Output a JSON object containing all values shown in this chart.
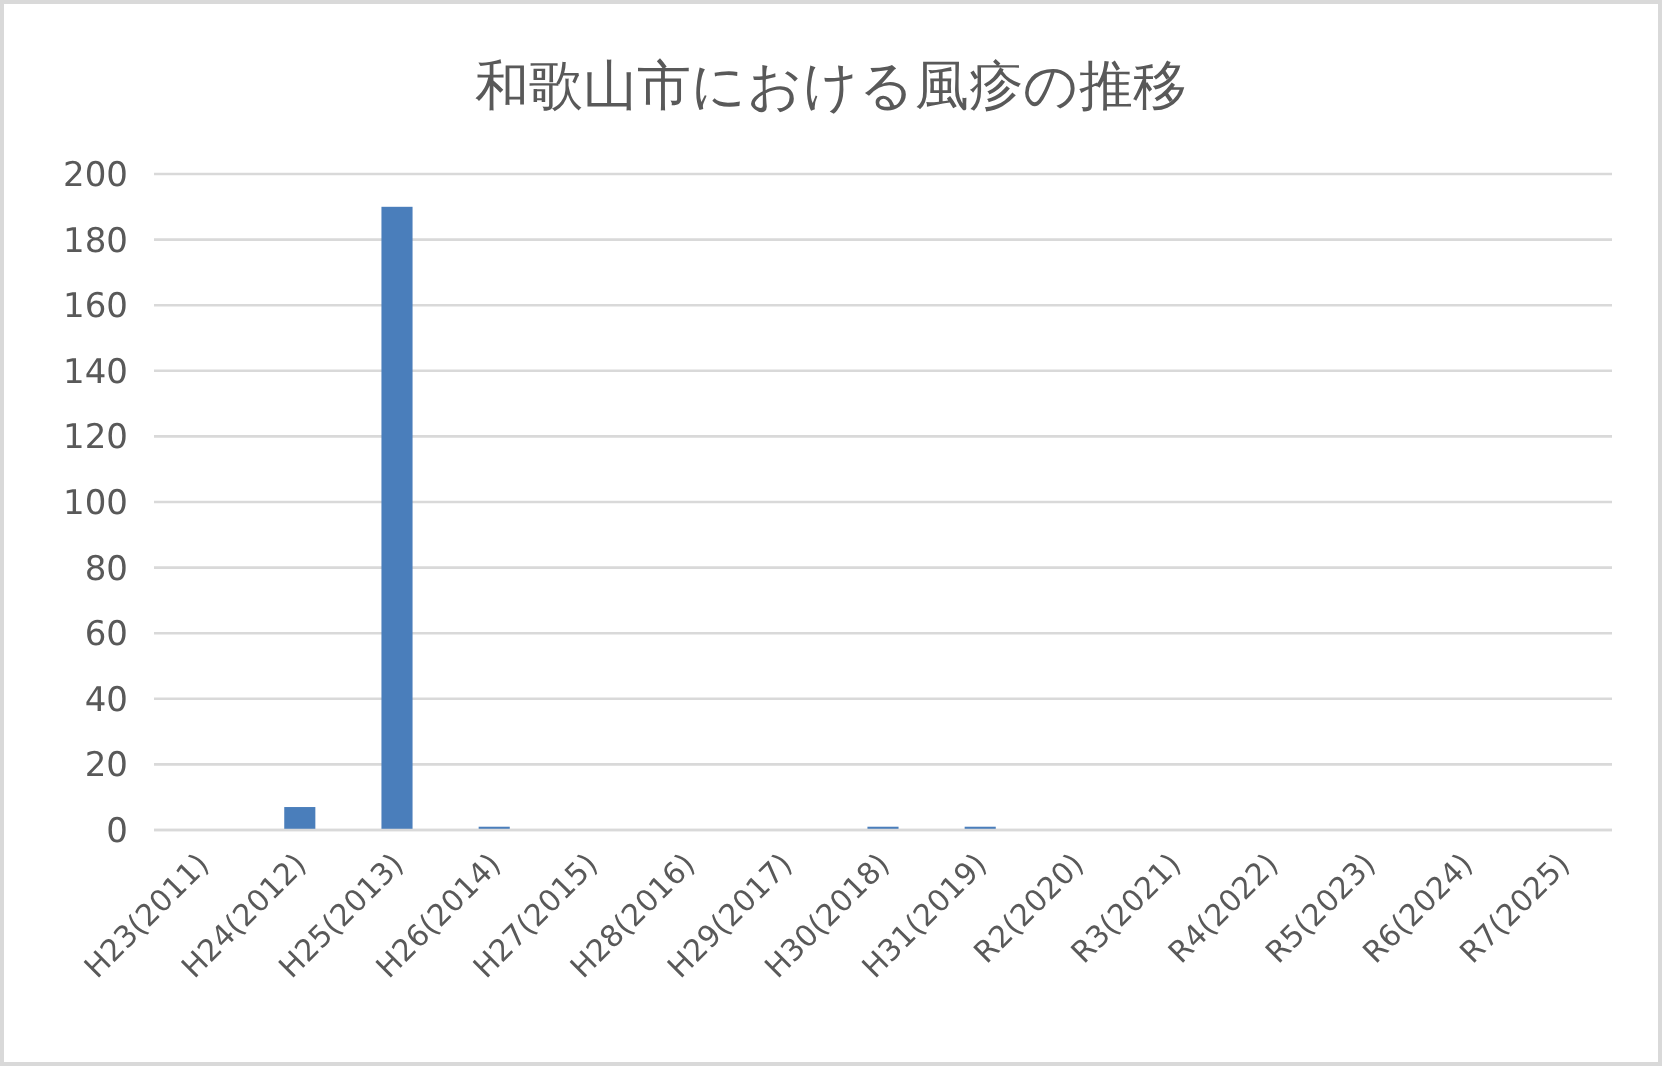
{
  "chart_data": {
    "type": "bar",
    "title": "和歌山市における風疹の推移",
    "categories": [
      "H23(2011)",
      "H24(2012)",
      "H25(2013)",
      "H26(2014)",
      "H27(2015)",
      "H28(2016)",
      "H29(2017)",
      "H30(2018)",
      "H31(2019)",
      "R2(2020)",
      "R3(2021)",
      "R4(2022)",
      "R5(2023)",
      "R6(2024)",
      "R7(2025)"
    ],
    "values": [
      0,
      7,
      190,
      1,
      0,
      0,
      0,
      1,
      1,
      0,
      0,
      0,
      0,
      0,
      0
    ],
    "color": "#4a7ebb",
    "ylim": [
      0,
      200
    ],
    "yticks": [
      0,
      20,
      40,
      60,
      80,
      100,
      120,
      140,
      160,
      180,
      200
    ],
    "grid": "y"
  }
}
